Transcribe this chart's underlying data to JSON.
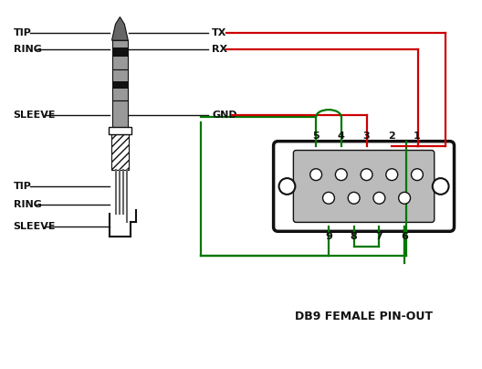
{
  "title": "DB9 FEMALE PIN-OUT",
  "bg_color": "#ffffff",
  "red_color": "#cc0000",
  "green_color": "#007700",
  "black_color": "#111111",
  "dark_gray": "#666666",
  "mid_gray": "#999999",
  "light_gray": "#bbbbbb",
  "label_fontsize": 8,
  "title_fontsize": 8,
  "jack_labels": [
    "TIP",
    "RING",
    "SLEEVE",
    "TIP",
    "RING",
    "SLEEVE"
  ],
  "signal_labels": [
    "TX",
    "RX",
    "GND"
  ],
  "pin_labels_top": [
    "5",
    "4",
    "3",
    "2",
    "1"
  ],
  "pin_labels_bot": [
    "9",
    "8",
    "7",
    "6"
  ]
}
